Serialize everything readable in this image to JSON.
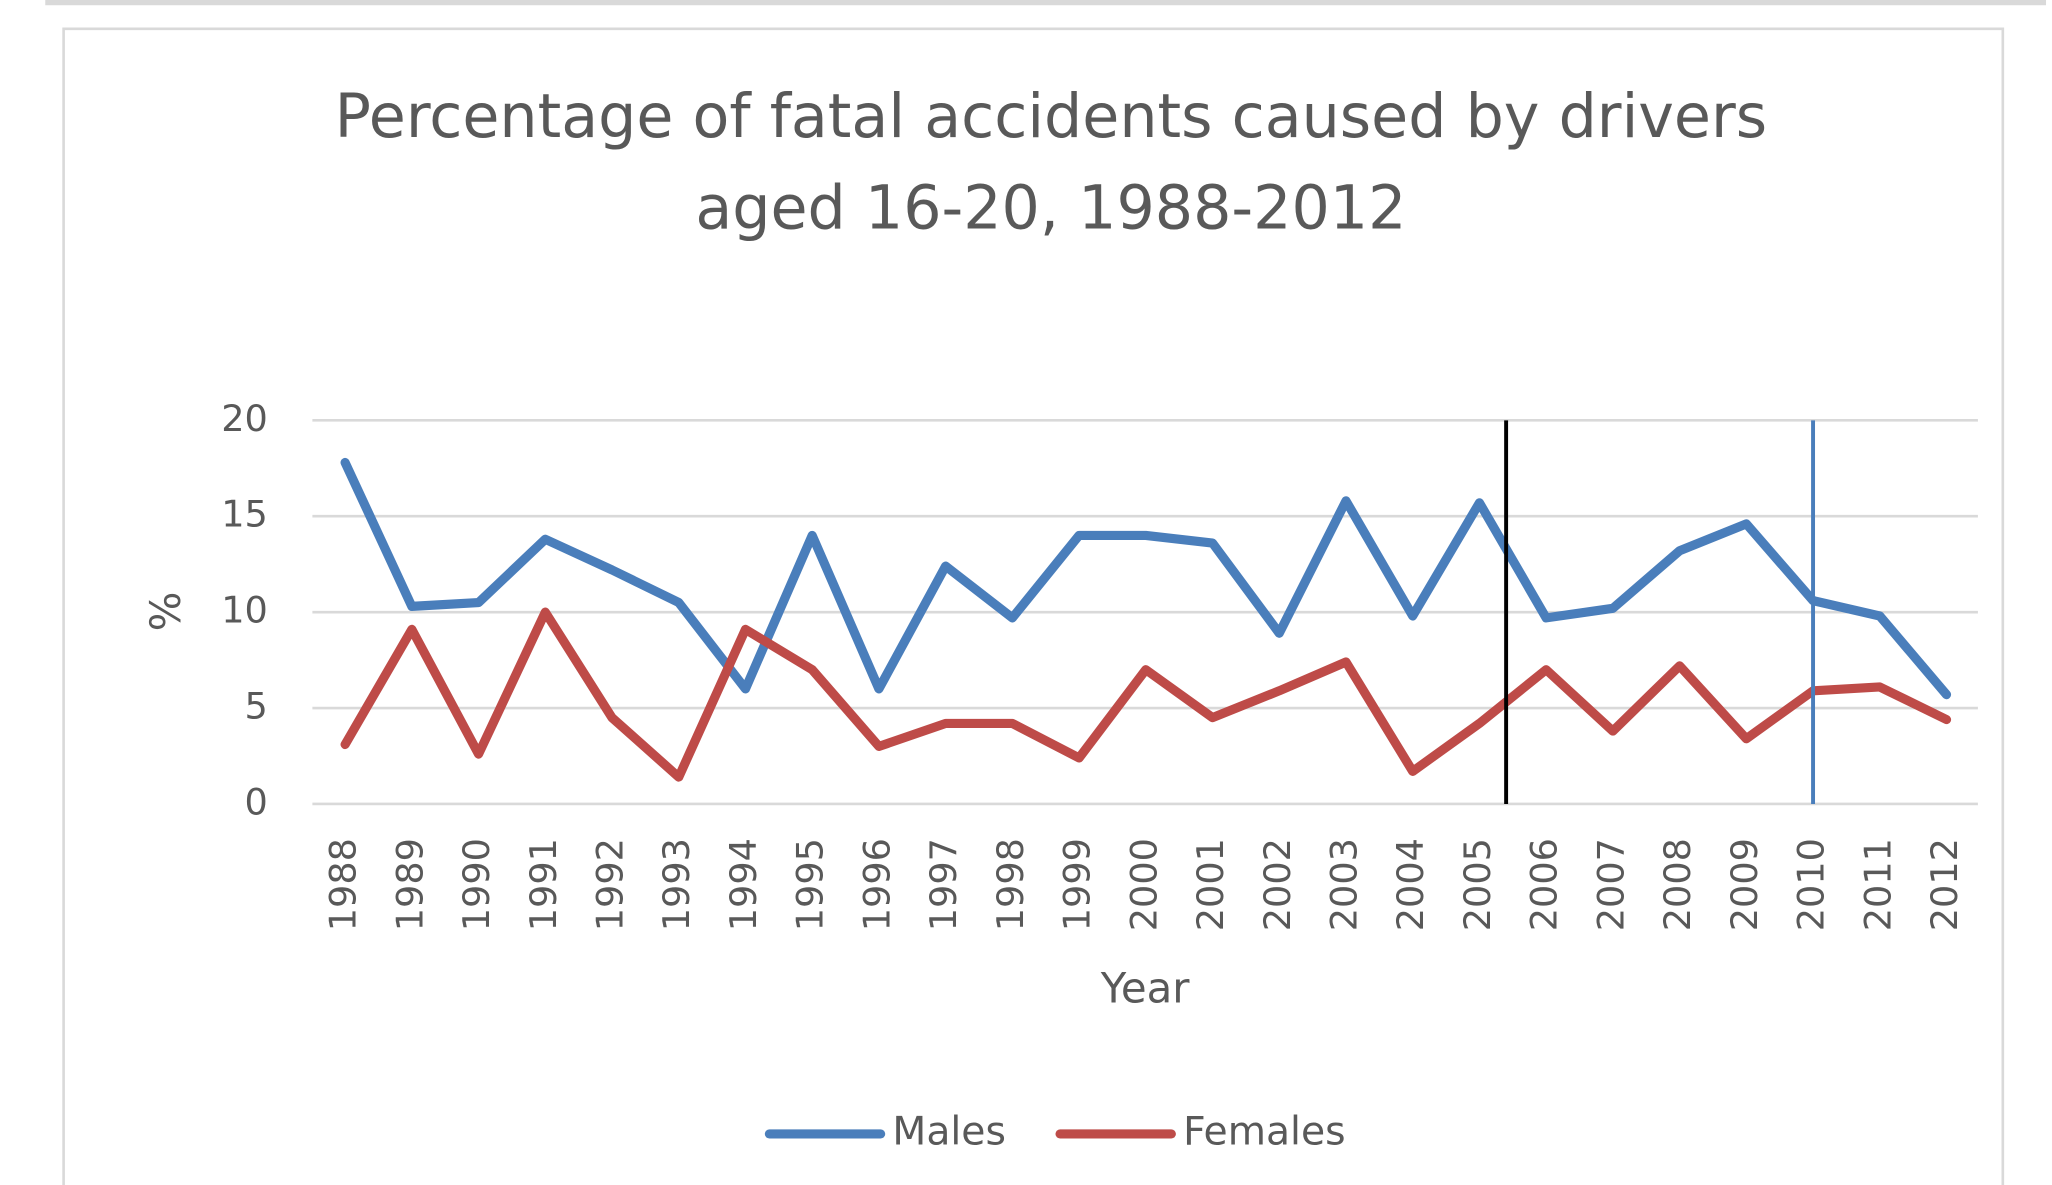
{
  "chart_data": {
    "type": "line",
    "title": [
      "Percentage of fatal accidents caused by drivers",
      "aged 16-20, 1988-2012"
    ],
    "x_label": "Year",
    "y_label": "%",
    "categories": [
      "1988",
      "1989",
      "1990",
      "1991",
      "1992",
      "1993",
      "1994",
      "1995",
      "1996",
      "1997",
      "1998",
      "1999",
      "2000",
      "2001",
      "2002",
      "2003",
      "2004",
      "2005",
      "2006",
      "2007",
      "2008",
      "2009",
      "2010",
      "2011",
      "2012"
    ],
    "series": [
      {
        "name": "Males",
        "color": "#4a7ebb",
        "values": [
          17.8,
          10.3,
          10.5,
          13.8,
          12.2,
          10.5,
          6.0,
          14.0,
          6.0,
          12.4,
          9.7,
          14.0,
          14.0,
          13.6,
          8.9,
          15.8,
          9.8,
          15.7,
          9.7,
          10.2,
          13.2,
          14.6,
          10.6,
          9.8,
          5.7
        ]
      },
      {
        "name": "Females",
        "color": "#be4b48",
        "values": [
          3.1,
          9.1,
          2.6,
          10.0,
          4.5,
          1.4,
          9.1,
          7.0,
          3.0,
          4.2,
          4.2,
          2.4,
          7.0,
          4.5,
          5.9,
          7.4,
          1.7,
          4.2,
          7.0,
          3.8,
          7.2,
          3.4,
          5.9,
          6.1,
          4.4
        ]
      }
    ],
    "vertical_lines": [
      {
        "x": 2005.4,
        "color": "#000000"
      },
      {
        "x": 2010,
        "color": "#4a7ebb"
      }
    ],
    "ylim": [
      0,
      20
    ],
    "yticks": [
      0,
      5,
      10,
      15,
      20
    ],
    "grid": true,
    "legend": "bottom"
  }
}
